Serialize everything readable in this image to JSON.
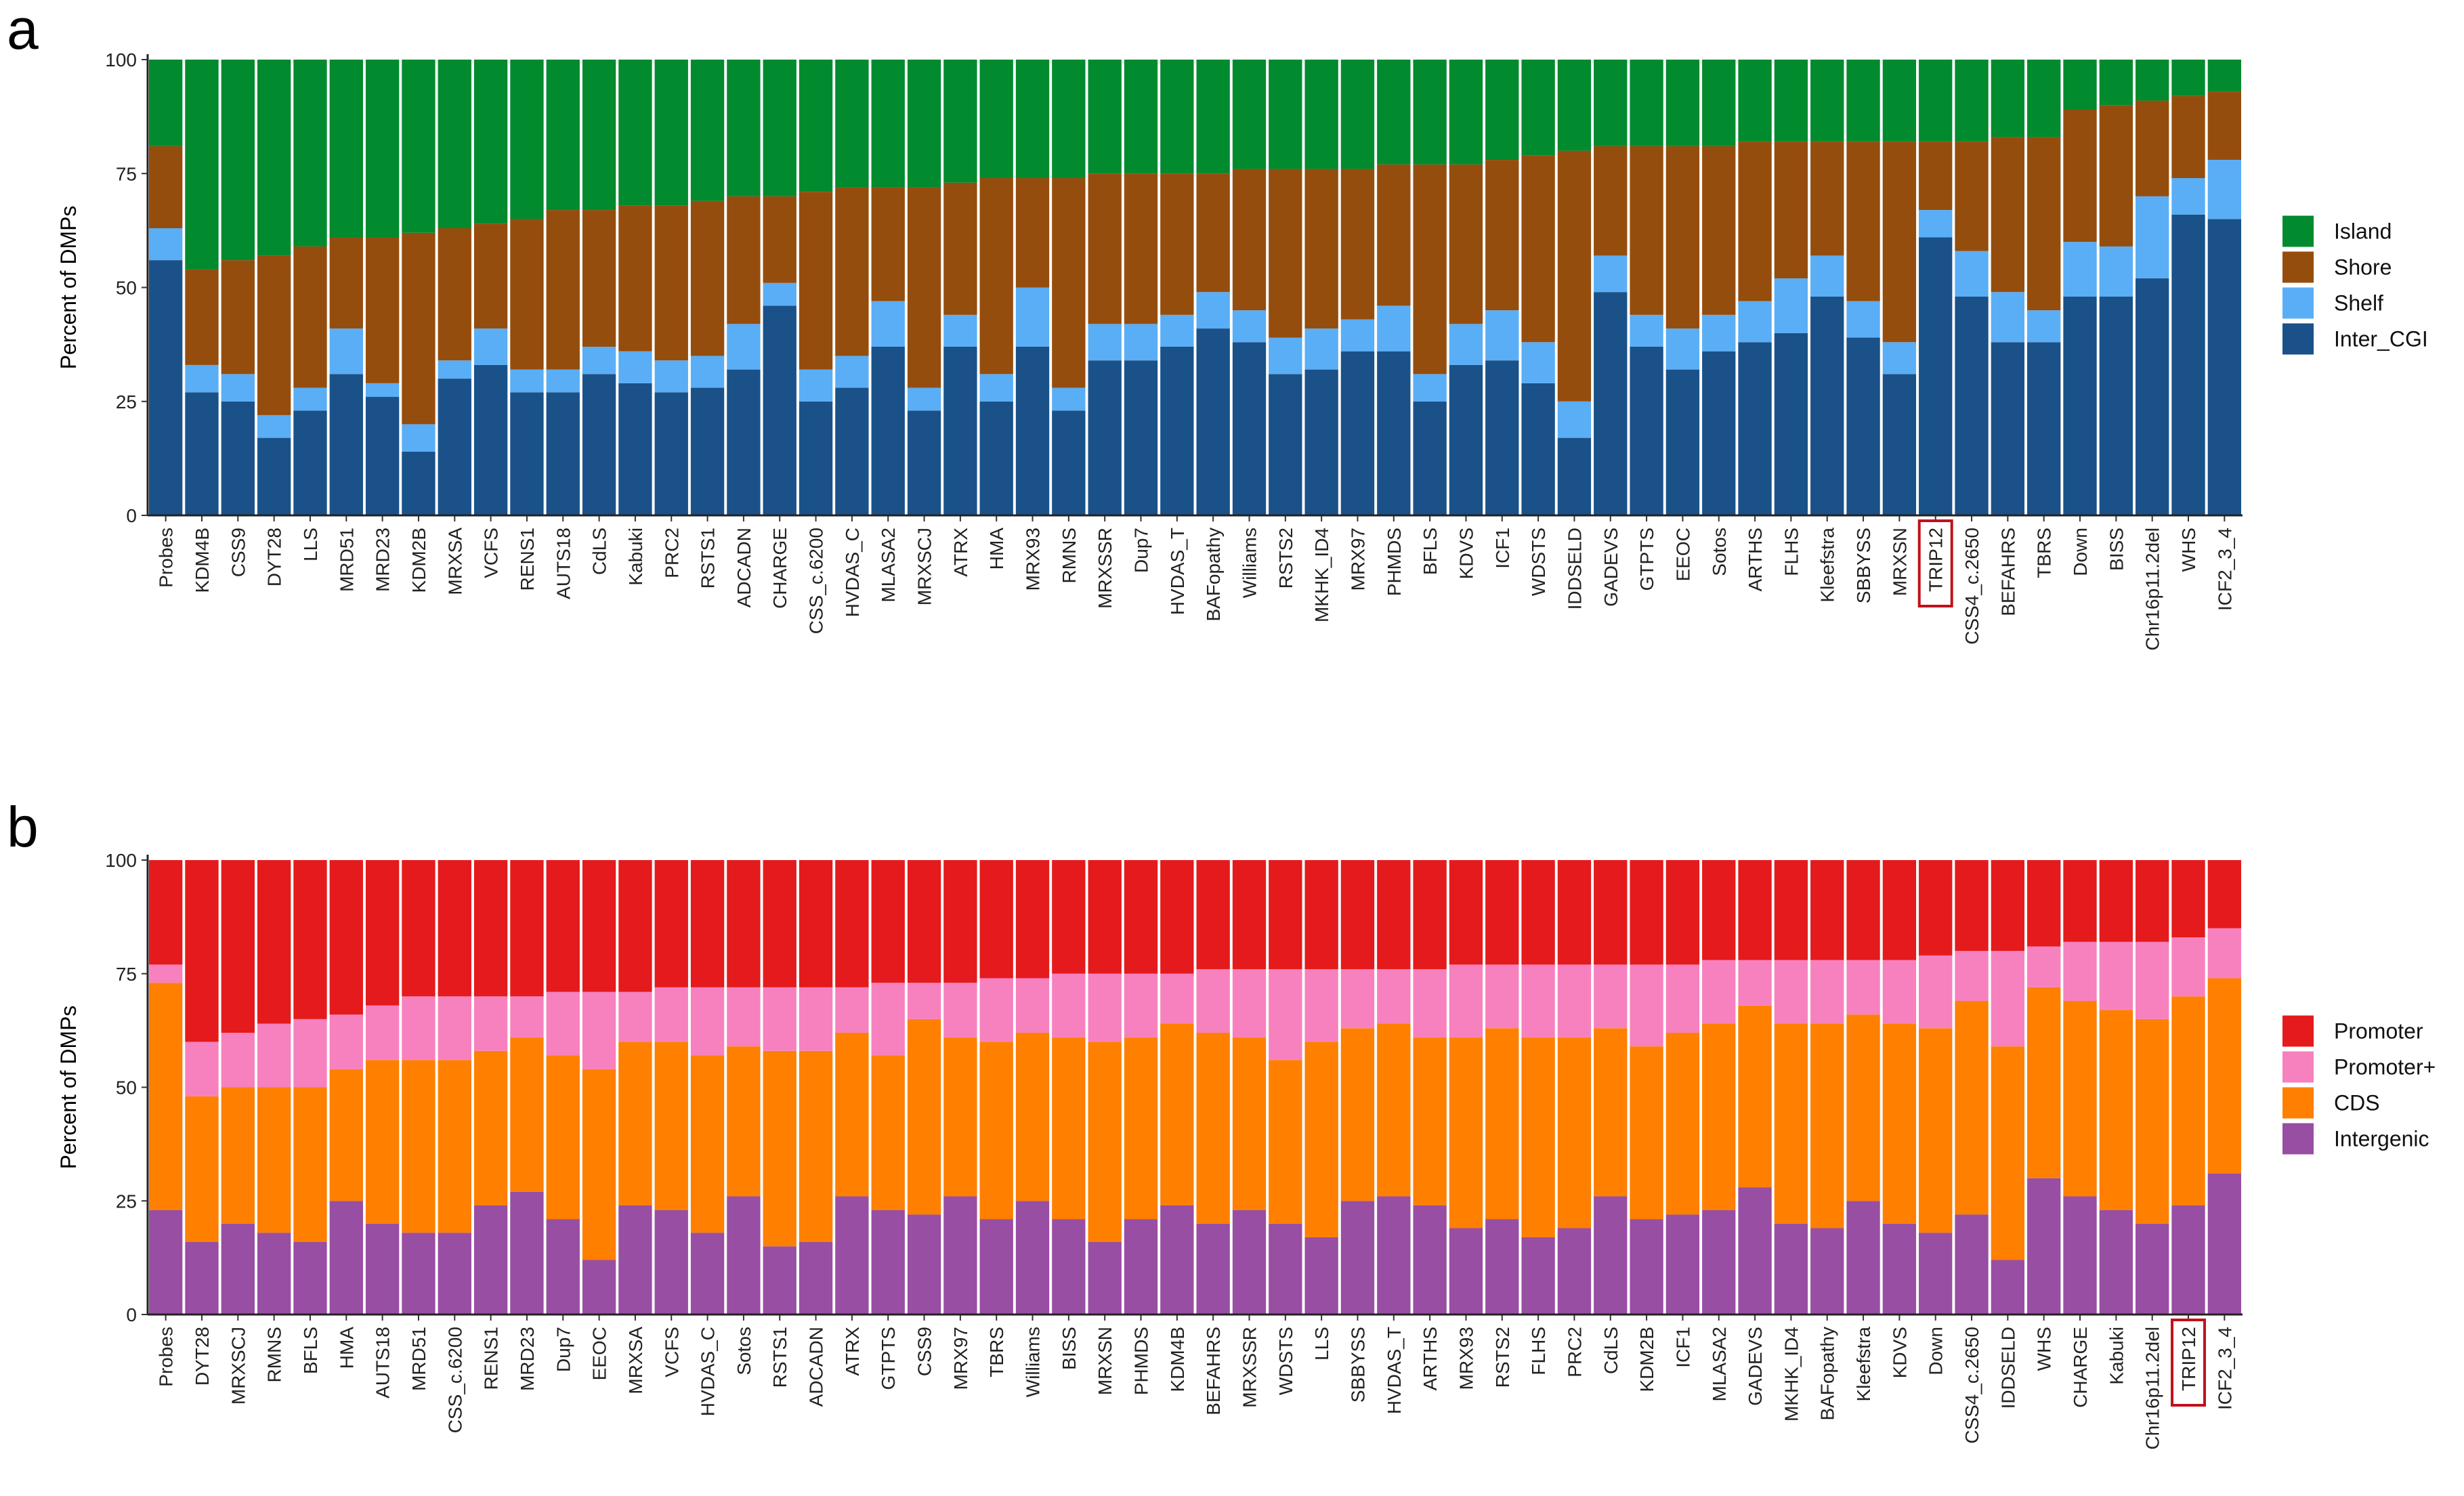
{
  "chart_data": [
    {
      "type": "bar",
      "stacked": true,
      "panel_label": "a",
      "ylabel": "Percent of DMPs",
      "ylim": [
        0,
        100
      ],
      "yticks": [
        "0",
        "25",
        "50",
        "75",
        "100"
      ],
      "legend_position": "right",
      "highlighted_category": "TRIP12",
      "categories": [
        "Probes",
        "KDM4B",
        "CSS9",
        "DYT28",
        "LLS",
        "MRD51",
        "MRD23",
        "KDM2B",
        "MRXSA",
        "VCFS",
        "RENS1",
        "AUTS18",
        "CdLS",
        "Kabuki",
        "PRC2",
        "RSTS1",
        "ADCADN",
        "CHARGE",
        "CSS_c.6200",
        "HVDAS_C",
        "MLASA2",
        "MRXSCJ",
        "ATRX",
        "HMA",
        "MRX93",
        "RMNS",
        "MRXSSR",
        "Dup7",
        "HVDAS_T",
        "BAFopathy",
        "Williams",
        "RSTS2",
        "MKHK_ID4",
        "MRX97",
        "PHMDS",
        "BFLS",
        "KDVS",
        "ICF1",
        "WDSTS",
        "IDDSELD",
        "GADEVS",
        "GTPTS",
        "EEOC",
        "Sotos",
        "ARTHS",
        "FLHS",
        "Kleefstra",
        "SBBYSS",
        "MRXSN",
        "TRIP12",
        "CSS4_c.2650",
        "BEFAHRS",
        "TBRS",
        "Down",
        "BISS",
        "Chr16p11.2del",
        "WHS",
        "ICF2_3_4"
      ],
      "series": [
        {
          "name": "Inter_CGI",
          "color": "#1a5189",
          "values": [
            56,
            27,
            25,
            17,
            23,
            31,
            26,
            14,
            30,
            33,
            27,
            27,
            31,
            29,
            27,
            28,
            32,
            46,
            25,
            28,
            37,
            23,
            37,
            25,
            37,
            23,
            34,
            34,
            37,
            41,
            38,
            31,
            32,
            36,
            36,
            25,
            33,
            34,
            29,
            17,
            49,
            37,
            32,
            36,
            38,
            40,
            48,
            39,
            31,
            61,
            48,
            38,
            38,
            48,
            48,
            52,
            66,
            65
          ]
        },
        {
          "name": "Shelf",
          "color": "#5aaef5",
          "values": [
            7,
            6,
            6,
            5,
            5,
            10,
            3,
            6,
            4,
            8,
            5,
            5,
            6,
            7,
            7,
            7,
            10,
            5,
            7,
            7,
            10,
            5,
            7,
            6,
            13,
            5,
            8,
            8,
            7,
            8,
            7,
            8,
            9,
            7,
            10,
            6,
            9,
            11,
            9,
            8,
            8,
            7,
            9,
            8,
            9,
            12,
            9,
            8,
            7,
            6,
            10,
            11,
            7,
            12,
            11,
            18,
            8,
            13
          ]
        },
        {
          "name": "Shore",
          "color": "#954d0d",
          "values": [
            18,
            21,
            25,
            35,
            31,
            20,
            32,
            42,
            29,
            23,
            33,
            35,
            30,
            32,
            34,
            34,
            28,
            19,
            39,
            37,
            25,
            44,
            29,
            43,
            24,
            46,
            33,
            33,
            31,
            26,
            31,
            37,
            35,
            33,
            31,
            46,
            35,
            33,
            41,
            55,
            24,
            37,
            40,
            37,
            35,
            30,
            25,
            35,
            44,
            15,
            24,
            34,
            38,
            29,
            31,
            21,
            18,
            15
          ]
        },
        {
          "name": "Island",
          "color": "#028a2f",
          "values": [
            19,
            46,
            44,
            43,
            41,
            39,
            39,
            38,
            37,
            36,
            35,
            33,
            33,
            32,
            32,
            31,
            30,
            30,
            29,
            28,
            28,
            28,
            27,
            26,
            26,
            26,
            25,
            25,
            25,
            25,
            24,
            24,
            24,
            24,
            23,
            23,
            23,
            22,
            21,
            20,
            19,
            19,
            19,
            19,
            18,
            18,
            18,
            18,
            18,
            18,
            18,
            17,
            17,
            11,
            10,
            9,
            8,
            7
          ]
        }
      ]
    },
    {
      "type": "bar",
      "stacked": true,
      "panel_label": "b",
      "ylabel": "Percent of DMPs",
      "ylim": [
        0,
        100
      ],
      "yticks": [
        "0",
        "25",
        "50",
        "75",
        "100"
      ],
      "legend_position": "right",
      "highlighted_category": "TRIP12",
      "categories": [
        "Probes",
        "DYT28",
        "MRXSCJ",
        "RMNS",
        "BFLS",
        "HMA",
        "AUTS18",
        "MRD51",
        "CSS_c.6200",
        "RENS1",
        "MRD23",
        "Dup7",
        "EEOC",
        "MRXSA",
        "VCFS",
        "HVDAS_C",
        "Sotos",
        "RSTS1",
        "ADCADN",
        "ATRX",
        "GTPTS",
        "CSS9",
        "MRX97",
        "TBRS",
        "Williams",
        "BISS",
        "MRXSN",
        "PHMDS",
        "KDM4B",
        "BEFAHRS",
        "MRXSSR",
        "WDSTS",
        "LLS",
        "SBBYSS",
        "HVDAS_T",
        "ARTHS",
        "MRX93",
        "RSTS2",
        "FLHS",
        "PRC2",
        "CdLS",
        "KDM2B",
        "ICF1",
        "MLASA2",
        "GADEVS",
        "MKHK_ID4",
        "BAFopathy",
        "Kleefstra",
        "KDVS",
        "Down",
        "CSS4_c.2650",
        "IDDSELD",
        "WHS",
        "CHARGE",
        "Kabuki",
        "Chr16p11.2del",
        "TRIP12",
        "ICF2_3_4"
      ],
      "series": [
        {
          "name": "Intergenic",
          "color": "#984ea3",
          "values": [
            23,
            16,
            20,
            18,
            16,
            25,
            20,
            18,
            18,
            24,
            27,
            21,
            12,
            24,
            23,
            18,
            26,
            15,
            16,
            26,
            23,
            22,
            26,
            21,
            25,
            21,
            16,
            21,
            24,
            20,
            23,
            20,
            17,
            25,
            26,
            24,
            19,
            21,
            17,
            19,
            26,
            21,
            22,
            23,
            28,
            20,
            19,
            25,
            20,
            18,
            22,
            12,
            30,
            26,
            23,
            20,
            24,
            31
          ]
        },
        {
          "name": "CDS",
          "color": "#ff7f00",
          "values": [
            50,
            32,
            30,
            32,
            34,
            29,
            36,
            38,
            38,
            34,
            34,
            36,
            42,
            36,
            37,
            39,
            33,
            43,
            42,
            36,
            34,
            43,
            35,
            39,
            37,
            40,
            44,
            40,
            40,
            42,
            38,
            36,
            43,
            38,
            38,
            37,
            42,
            42,
            44,
            42,
            37,
            38,
            40,
            41,
            40,
            44,
            45,
            41,
            44,
            45,
            47,
            47,
            42,
            43,
            44,
            45,
            46,
            43
          ]
        },
        {
          "name": "Promoter+",
          "color": "#f781bf",
          "values": [
            4,
            12,
            12,
            14,
            15,
            12,
            12,
            14,
            14,
            12,
            9,
            14,
            17,
            11,
            12,
            15,
            13,
            14,
            14,
            10,
            16,
            8,
            12,
            14,
            12,
            14,
            15,
            14,
            11,
            14,
            15,
            20,
            16,
            13,
            12,
            15,
            16,
            14,
            16,
            16,
            14,
            18,
            15,
            14,
            10,
            14,
            14,
            12,
            14,
            16,
            11,
            21,
            9,
            13,
            15,
            17,
            13,
            11
          ]
        },
        {
          "name": "Promoter",
          "color": "#e41a1c",
          "values": [
            23,
            40,
            38,
            36,
            35,
            34,
            32,
            30,
            30,
            30,
            30,
            29,
            29,
            29,
            28,
            28,
            28,
            28,
            28,
            28,
            27,
            27,
            27,
            26,
            26,
            25,
            25,
            25,
            25,
            24,
            24,
            24,
            24,
            24,
            24,
            24,
            23,
            23,
            23,
            23,
            23,
            23,
            23,
            22,
            22,
            22,
            22,
            22,
            22,
            21,
            20,
            20,
            19,
            18,
            18,
            18,
            17,
            15
          ]
        }
      ]
    }
  ]
}
